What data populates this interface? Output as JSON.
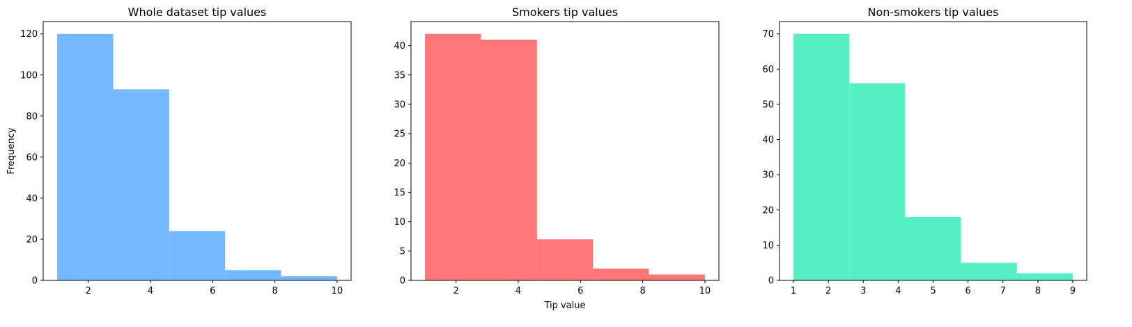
{
  "chart_data": [
    {
      "type": "bar",
      "title": "Whole dataset tip values",
      "xlabel": "",
      "ylabel": "Frequency",
      "color": "#74b9ff",
      "bin_edges": [
        1.0,
        2.8,
        4.6,
        6.4,
        8.2,
        10.0
      ],
      "values": [
        120,
        93,
        24,
        5,
        2
      ],
      "xlim": [
        0.55,
        10.45
      ],
      "ylim": [
        0,
        126
      ],
      "xticks": [
        2,
        4,
        6,
        8,
        10
      ],
      "yticks": [
        0,
        20,
        40,
        60,
        80,
        100,
        120
      ]
    },
    {
      "type": "bar",
      "title": "Smokers tip values",
      "xlabel": "Tip value",
      "ylabel": "",
      "color": "#ff7675",
      "bin_edges": [
        1.0,
        2.8,
        4.6,
        6.4,
        8.2,
        10.0
      ],
      "values": [
        42,
        41,
        7,
        2,
        1
      ],
      "xlim": [
        0.55,
        10.45
      ],
      "ylim": [
        0,
        44.1
      ],
      "xticks": [
        2,
        4,
        6,
        8,
        10
      ],
      "yticks": [
        0,
        5,
        10,
        15,
        20,
        25,
        30,
        35,
        40
      ]
    },
    {
      "type": "bar",
      "title": "Non-smokers tip values",
      "xlabel": "",
      "ylabel": "",
      "color": "#55efc4",
      "bin_edges": [
        1.0,
        2.6,
        4.2,
        5.8,
        7.4,
        9.0
      ],
      "values": [
        70,
        56,
        18,
        5,
        2
      ],
      "xlim": [
        0.6,
        9.4
      ],
      "ylim": [
        0,
        73.5
      ],
      "xticks": [
        1,
        2,
        3,
        4,
        5,
        6,
        7,
        8,
        9
      ],
      "yticks": [
        0,
        10,
        20,
        30,
        40,
        50,
        60,
        70
      ]
    }
  ]
}
